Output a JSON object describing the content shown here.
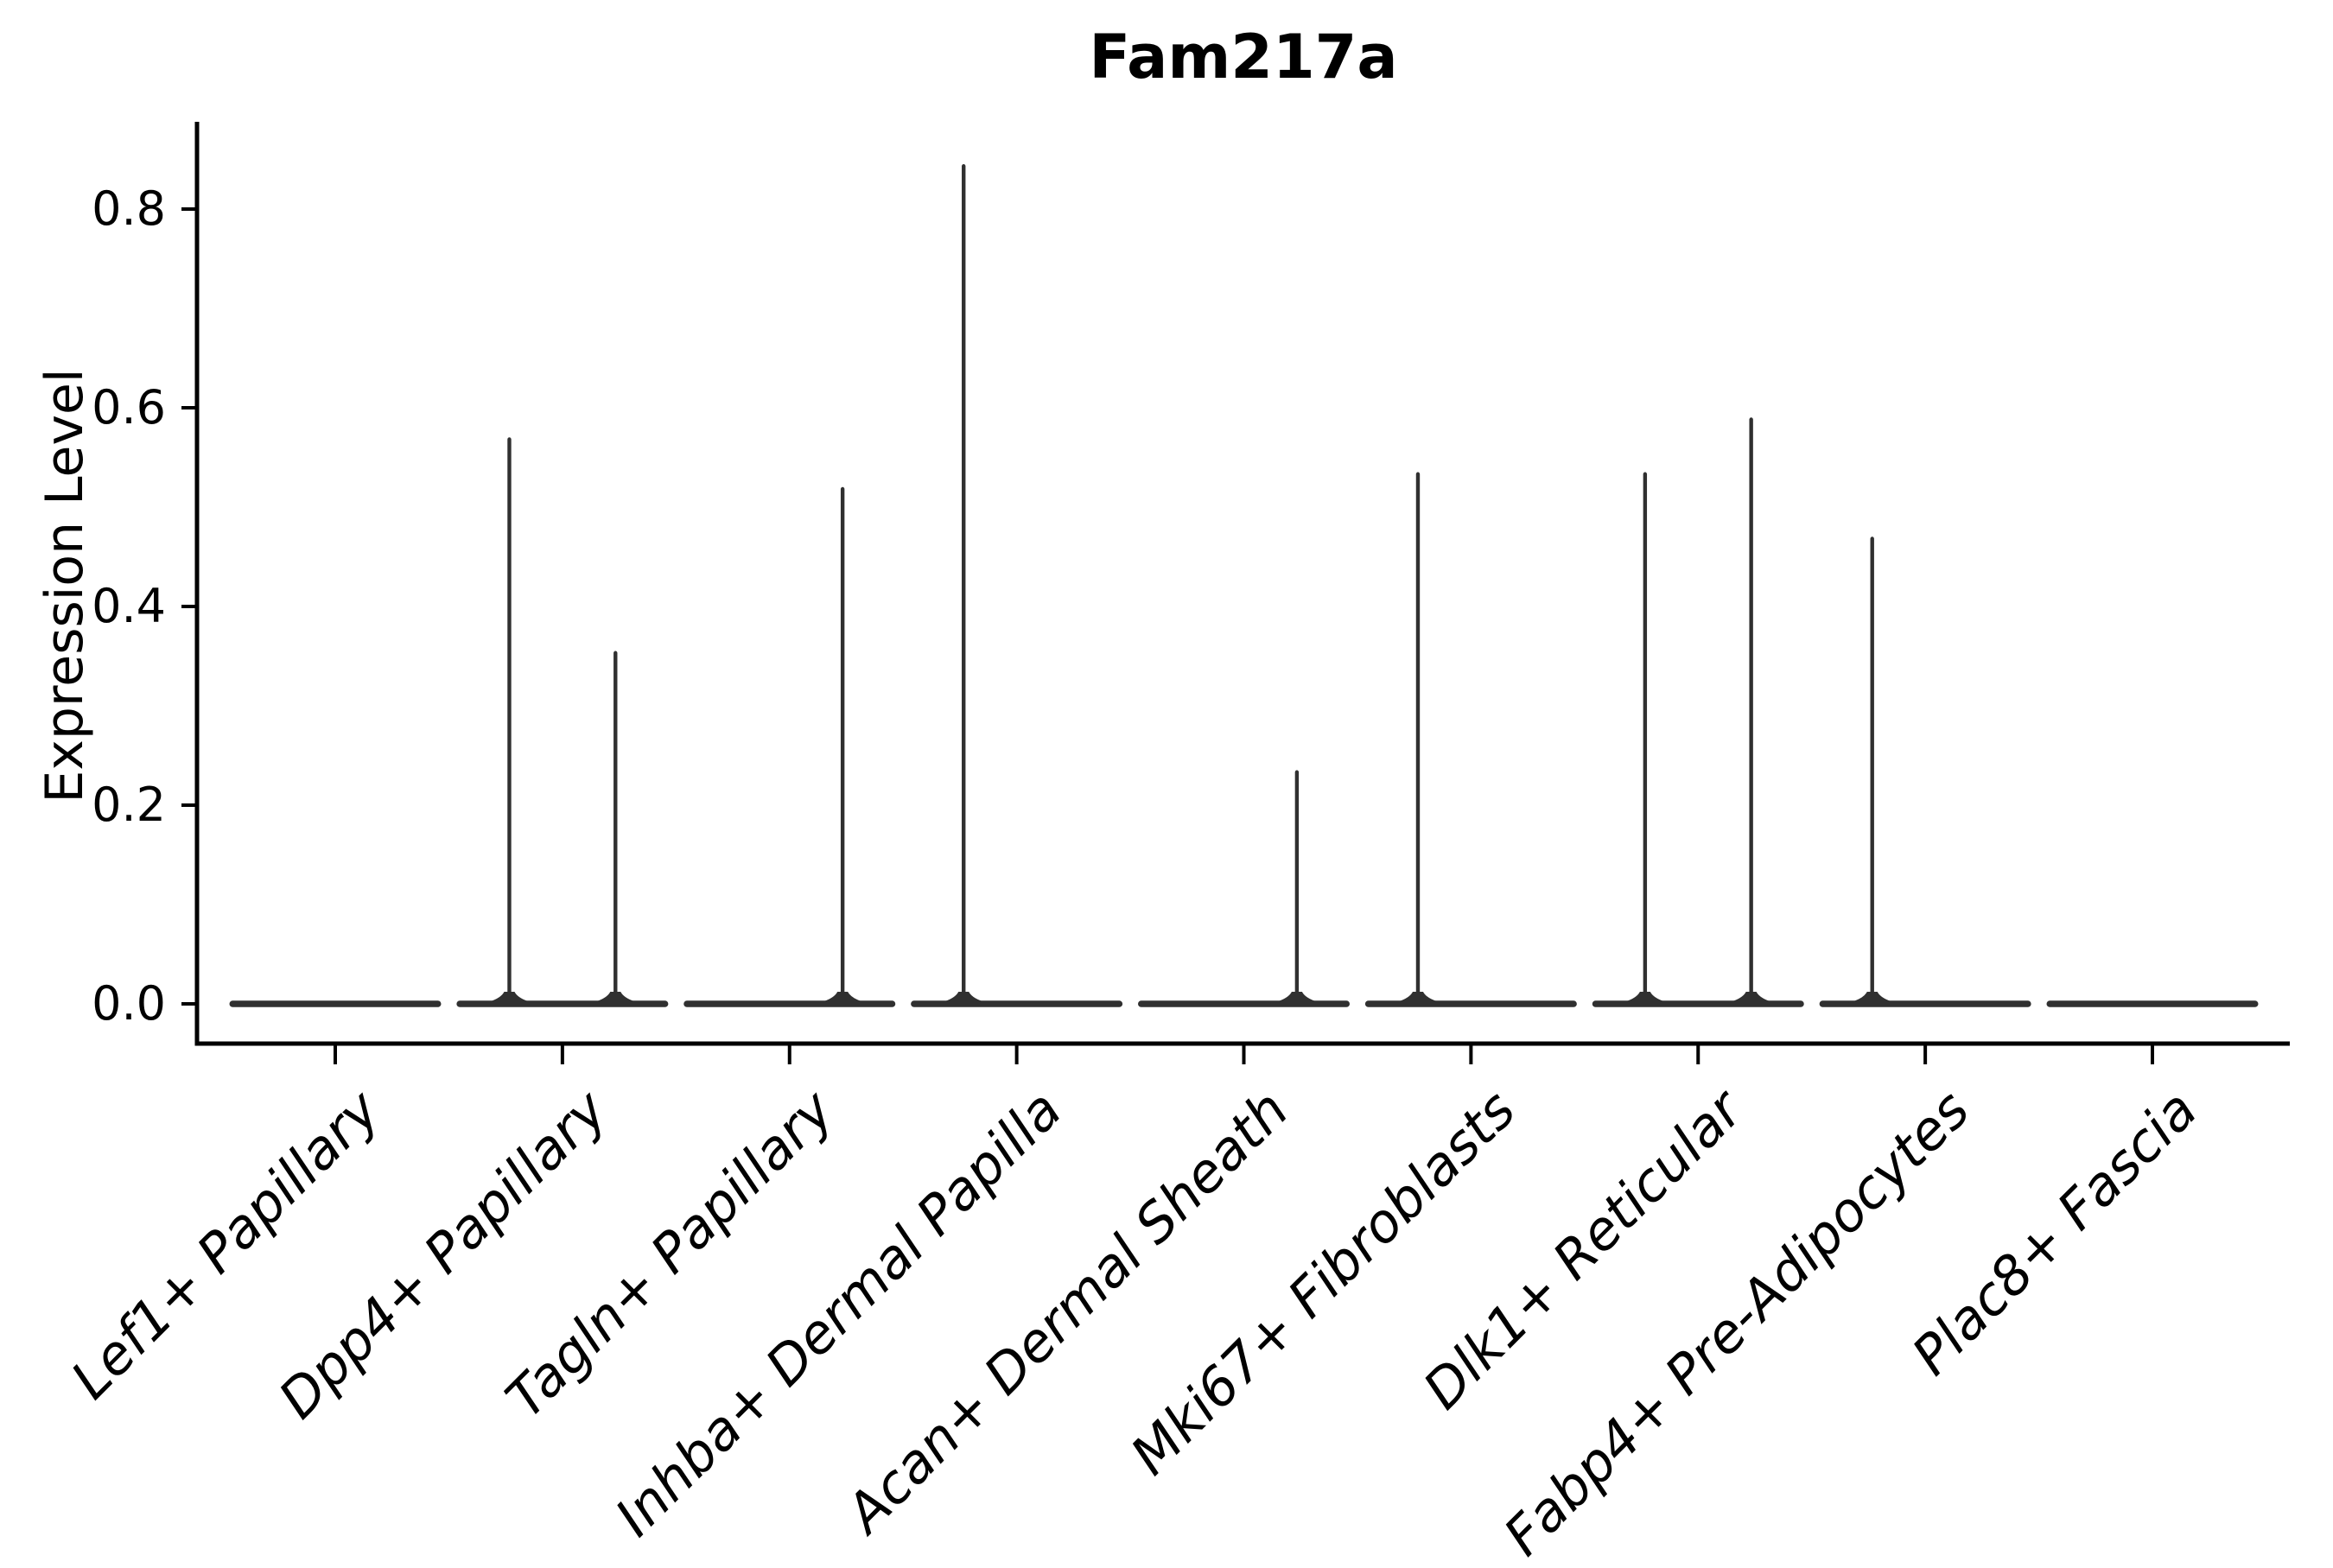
{
  "chart_data": {
    "type": "violin",
    "title": "Fam217a",
    "ylabel": "Expression Level",
    "xlabel": "",
    "categories": [
      "Lef1+ Papillary",
      "Dpp4+ Papillary",
      "Tagln+ Papillary",
      "Inhba+ Dermal Papilla",
      "Acan+ Dermal Sheath",
      "Mki67+ Fibroblasts",
      "Dlk1+ Reticular",
      "Fabp4+ Pre-Adipocytes",
      "Plac8+ Fascia"
    ],
    "ytick_labels": [
      "0.0",
      "0.2",
      "0.4",
      "0.6",
      "0.8"
    ],
    "ytick_values": [
      0.0,
      0.2,
      0.4,
      0.6,
      0.8
    ],
    "ylim": [
      -0.04,
      0.888
    ],
    "baseline_value": 0.0,
    "grid": false,
    "legend_position": "none",
    "violins": [
      {
        "category": "Lef1+ Papillary",
        "sub_violins": [
          {
            "side": "left",
            "peak_expression": 0.0
          },
          {
            "side": "right",
            "peak_expression": 0.0
          }
        ]
      },
      {
        "category": "Dpp4+ Papillary",
        "sub_violins": [
          {
            "side": "left",
            "peak_expression": 0.57
          },
          {
            "side": "right",
            "peak_expression": 0.355
          }
        ]
      },
      {
        "category": "Tagln+ Papillary",
        "sub_violins": [
          {
            "side": "left",
            "peak_expression": 0.0
          },
          {
            "side": "right",
            "peak_expression": 0.52
          }
        ]
      },
      {
        "category": "Inhba+ Dermal Papilla",
        "sub_violins": [
          {
            "side": "left",
            "peak_expression": 0.845
          },
          {
            "side": "right",
            "peak_expression": 0.0
          }
        ]
      },
      {
        "category": "Acan+ Dermal Sheath",
        "sub_violins": [
          {
            "side": "left",
            "peak_expression": 0.0
          },
          {
            "side": "right",
            "peak_expression": 0.235
          }
        ]
      },
      {
        "category": "Mki67+ Fibroblasts",
        "sub_violins": [
          {
            "side": "left",
            "peak_expression": 0.535
          },
          {
            "side": "right",
            "peak_expression": 0.0
          }
        ]
      },
      {
        "category": "Dlk1+ Reticular",
        "sub_violins": [
          {
            "side": "left",
            "peak_expression": 0.535
          },
          {
            "side": "right",
            "peak_expression": 0.59
          }
        ]
      },
      {
        "category": "Fabp4+ Pre-Adipocytes",
        "sub_violins": [
          {
            "side": "left",
            "peak_expression": 0.47
          },
          {
            "side": "right",
            "peak_expression": 0.0
          }
        ]
      },
      {
        "category": "Plac8+ Fascia",
        "sub_violins": [
          {
            "side": "left",
            "peak_expression": 0.0
          },
          {
            "side": "right",
            "peak_expression": 0.0
          }
        ]
      }
    ],
    "style": {
      "violin_color": "#303030",
      "axis_color": "#000000",
      "text_color": "#000000",
      "background": "#ffffff"
    }
  }
}
